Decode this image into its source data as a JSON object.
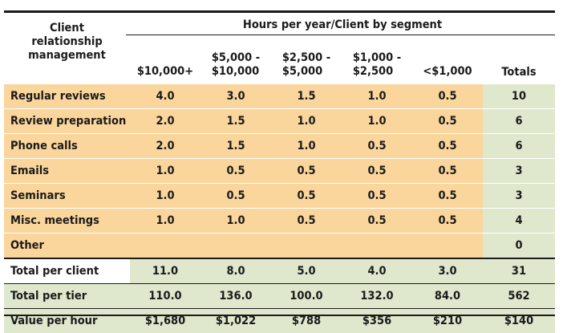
{
  "header": {
    "left_line1": "Client",
    "left_line2": "relationship",
    "left_line3": "management",
    "group": "Hours per year/Client by segment",
    "segments": [
      {
        "line1": "",
        "line2": "$10,000+"
      },
      {
        "line1": "$5,000 -",
        "line2": "$10,000"
      },
      {
        "line1": "$2,500 -",
        "line2": "$5,000"
      },
      {
        "line1": "$1,000 -",
        "line2": "$2,500"
      },
      {
        "line1": "",
        "line2": "<$1,000"
      }
    ],
    "totals": "Totals"
  },
  "rows": [
    {
      "label": "Regular reviews",
      "values": [
        "4.0",
        "3.0",
        "1.5",
        "1.0",
        "0.5"
      ],
      "total": "10"
    },
    {
      "label": "Review preparation",
      "values": [
        "2.0",
        "1.5",
        "1.0",
        "1.0",
        "0.5"
      ],
      "total": "6"
    },
    {
      "label": "Phone calls",
      "values": [
        "2.0",
        "1.5",
        "1.0",
        "0.5",
        "0.5"
      ],
      "total": "6"
    },
    {
      "label": "Emails",
      "values": [
        "1.0",
        "0.5",
        "0.5",
        "0.5",
        "0.5"
      ],
      "total": "3"
    },
    {
      "label": "Seminars",
      "values": [
        "1.0",
        "0.5",
        "0.5",
        "0.5",
        "0.5"
      ],
      "total": "3"
    },
    {
      "label": "Misc. meetings",
      "values": [
        "1.0",
        "1.0",
        "0.5",
        "0.5",
        "0.5"
      ],
      "total": "4"
    },
    {
      "label": "Other",
      "values": [
        "",
        "",
        "",
        "",
        ""
      ],
      "total": "0"
    }
  ],
  "summary": [
    {
      "label": "Total per client",
      "values": [
        "11.0",
        "8.0",
        "5.0",
        "4.0",
        "3.0"
      ],
      "total": "31"
    },
    {
      "label": "Total per tier",
      "values": [
        "110.0",
        "136.0",
        "100.0",
        "132.0",
        "84.0"
      ],
      "total": "562"
    },
    {
      "label": "Value per hour",
      "values": [
        "$1,680",
        "$1,022",
        "$788",
        "$356",
        "$210"
      ],
      "total": "$140"
    }
  ]
}
